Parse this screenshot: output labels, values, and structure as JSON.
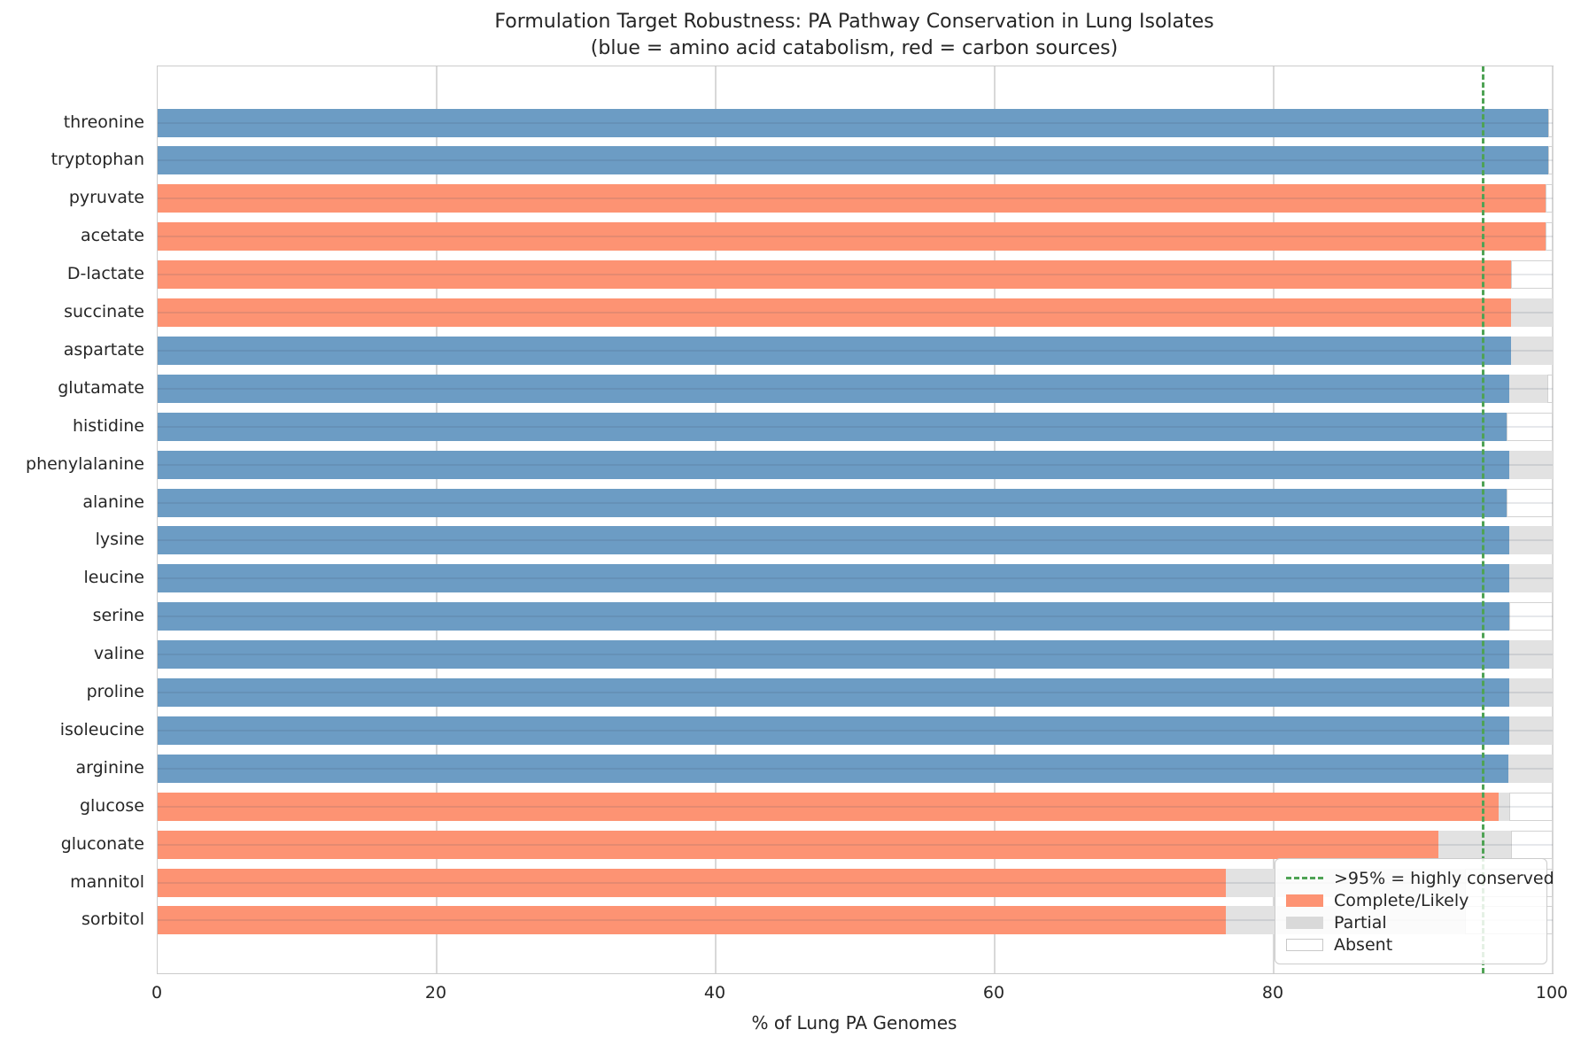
{
  "chart_data": {
    "type": "bar",
    "orientation": "horizontal",
    "stacked": true,
    "title": "Formulation Target Robustness: PA Pathway Conservation in Lung Isolates",
    "subtitle": "(blue = amino acid catabolism, red = carbon sources)",
    "xlabel": "% of Lung PA Genomes",
    "xlim": [
      0,
      100
    ],
    "xticks": [
      0,
      20,
      40,
      60,
      80,
      100
    ],
    "grid": true,
    "legend_position": "lower right",
    "threshold_line": {
      "value": 95,
      "label": ">95% = highly conserved",
      "color": "#4fa355",
      "style": "dashed"
    },
    "palette": {
      "amino_acid_catabolism": "#6c9cc4",
      "carbon_source": "#fd9373",
      "partial": "#e2e2e2",
      "absent_fill": "#ffffff",
      "absent_border": "#d2d2d2"
    },
    "categories": [
      "threonine",
      "tryptophan",
      "pyruvate",
      "acetate",
      "D-lactate",
      "succinate",
      "aspartate",
      "glutamate",
      "histidine",
      "phenylalanine",
      "alanine",
      "lysine",
      "leucine",
      "serine",
      "valine",
      "proline",
      "isoleucine",
      "arginine",
      "glucose",
      "gluconate",
      "mannitol",
      "sorbitol"
    ],
    "groups": [
      "amino",
      "amino",
      "carbon",
      "carbon",
      "carbon",
      "carbon",
      "amino",
      "amino",
      "amino",
      "amino",
      "amino",
      "amino",
      "amino",
      "amino",
      "amino",
      "amino",
      "amino",
      "amino",
      "carbon",
      "carbon",
      "carbon",
      "carbon"
    ],
    "series": [
      {
        "name": "Complete/Likely",
        "values": [
          99.7,
          99.7,
          99.5,
          99.5,
          97.0,
          97.0,
          97.0,
          96.9,
          96.7,
          96.9,
          96.7,
          96.9,
          96.9,
          96.9,
          96.9,
          96.9,
          96.9,
          96.8,
          96.1,
          91.8,
          76.6,
          76.6
        ]
      },
      {
        "name": "Partial",
        "values": [
          0,
          0,
          0,
          0,
          0,
          3.0,
          3.0,
          2.7,
          0,
          3.1,
          0,
          3.1,
          3.1,
          0,
          3.1,
          3.1,
          3.1,
          3.2,
          0.8,
          5.2,
          17.1,
          17.1
        ]
      },
      {
        "name": "Absent",
        "values": [
          0.3,
          0.3,
          0.5,
          0.5,
          3.0,
          0,
          0,
          0.4,
          3.3,
          0,
          3.3,
          0,
          0,
          3.1,
          0,
          0,
          0,
          0,
          3.1,
          3.0,
          6.3,
          6.3
        ]
      }
    ],
    "legend_items": [
      {
        "sample": "dashed-line",
        "label": ">95% = highly conserved"
      },
      {
        "sample": "patch-complete",
        "label": "Complete/Likely"
      },
      {
        "sample": "patch-partial",
        "label": "Partial"
      },
      {
        "sample": "patch-absent",
        "label": "Absent"
      }
    ]
  }
}
